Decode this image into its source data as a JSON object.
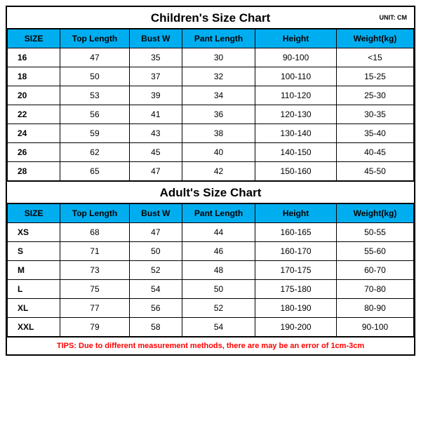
{
  "unit_label": "UNIT: CM",
  "tips": {
    "text": "TIPS: Due to different measurement methods, there are may be an error of 1cm-3cm",
    "color": "#ff0000"
  },
  "header_bg": "#00aef0",
  "border_color": "#000000",
  "children": {
    "title": "Children's Size Chart",
    "columns": [
      "SIZE",
      "Top Length",
      "Bust W",
      "Pant Length",
      "Height",
      "Weight(kg)"
    ],
    "rows": [
      [
        "16",
        "47",
        "35",
        "30",
        "90-100",
        "<15"
      ],
      [
        "18",
        "50",
        "37",
        "32",
        "100-110",
        "15-25"
      ],
      [
        "20",
        "53",
        "39",
        "34",
        "110-120",
        "25-30"
      ],
      [
        "22",
        "56",
        "41",
        "36",
        "120-130",
        "30-35"
      ],
      [
        "24",
        "59",
        "43",
        "38",
        "130-140",
        "35-40"
      ],
      [
        "26",
        "62",
        "45",
        "40",
        "140-150",
        "40-45"
      ],
      [
        "28",
        "65",
        "47",
        "42",
        "150-160",
        "45-50"
      ]
    ]
  },
  "adult": {
    "title": "Adult's Size Chart",
    "columns": [
      "SIZE",
      "Top Length",
      "Bust W",
      "Pant Length",
      "Height",
      "Weight(kg)"
    ],
    "rows": [
      [
        "XS",
        "68",
        "47",
        "44",
        "160-165",
        "50-55"
      ],
      [
        "S",
        "71",
        "50",
        "46",
        "160-170",
        "55-60"
      ],
      [
        "M",
        "73",
        "52",
        "48",
        "170-175",
        "60-70"
      ],
      [
        "L",
        "75",
        "54",
        "50",
        "175-180",
        "70-80"
      ],
      [
        "XL",
        "77",
        "56",
        "52",
        "180-190",
        "80-90"
      ],
      [
        "XXL",
        "79",
        "58",
        "54",
        "190-200",
        "90-100"
      ]
    ]
  }
}
